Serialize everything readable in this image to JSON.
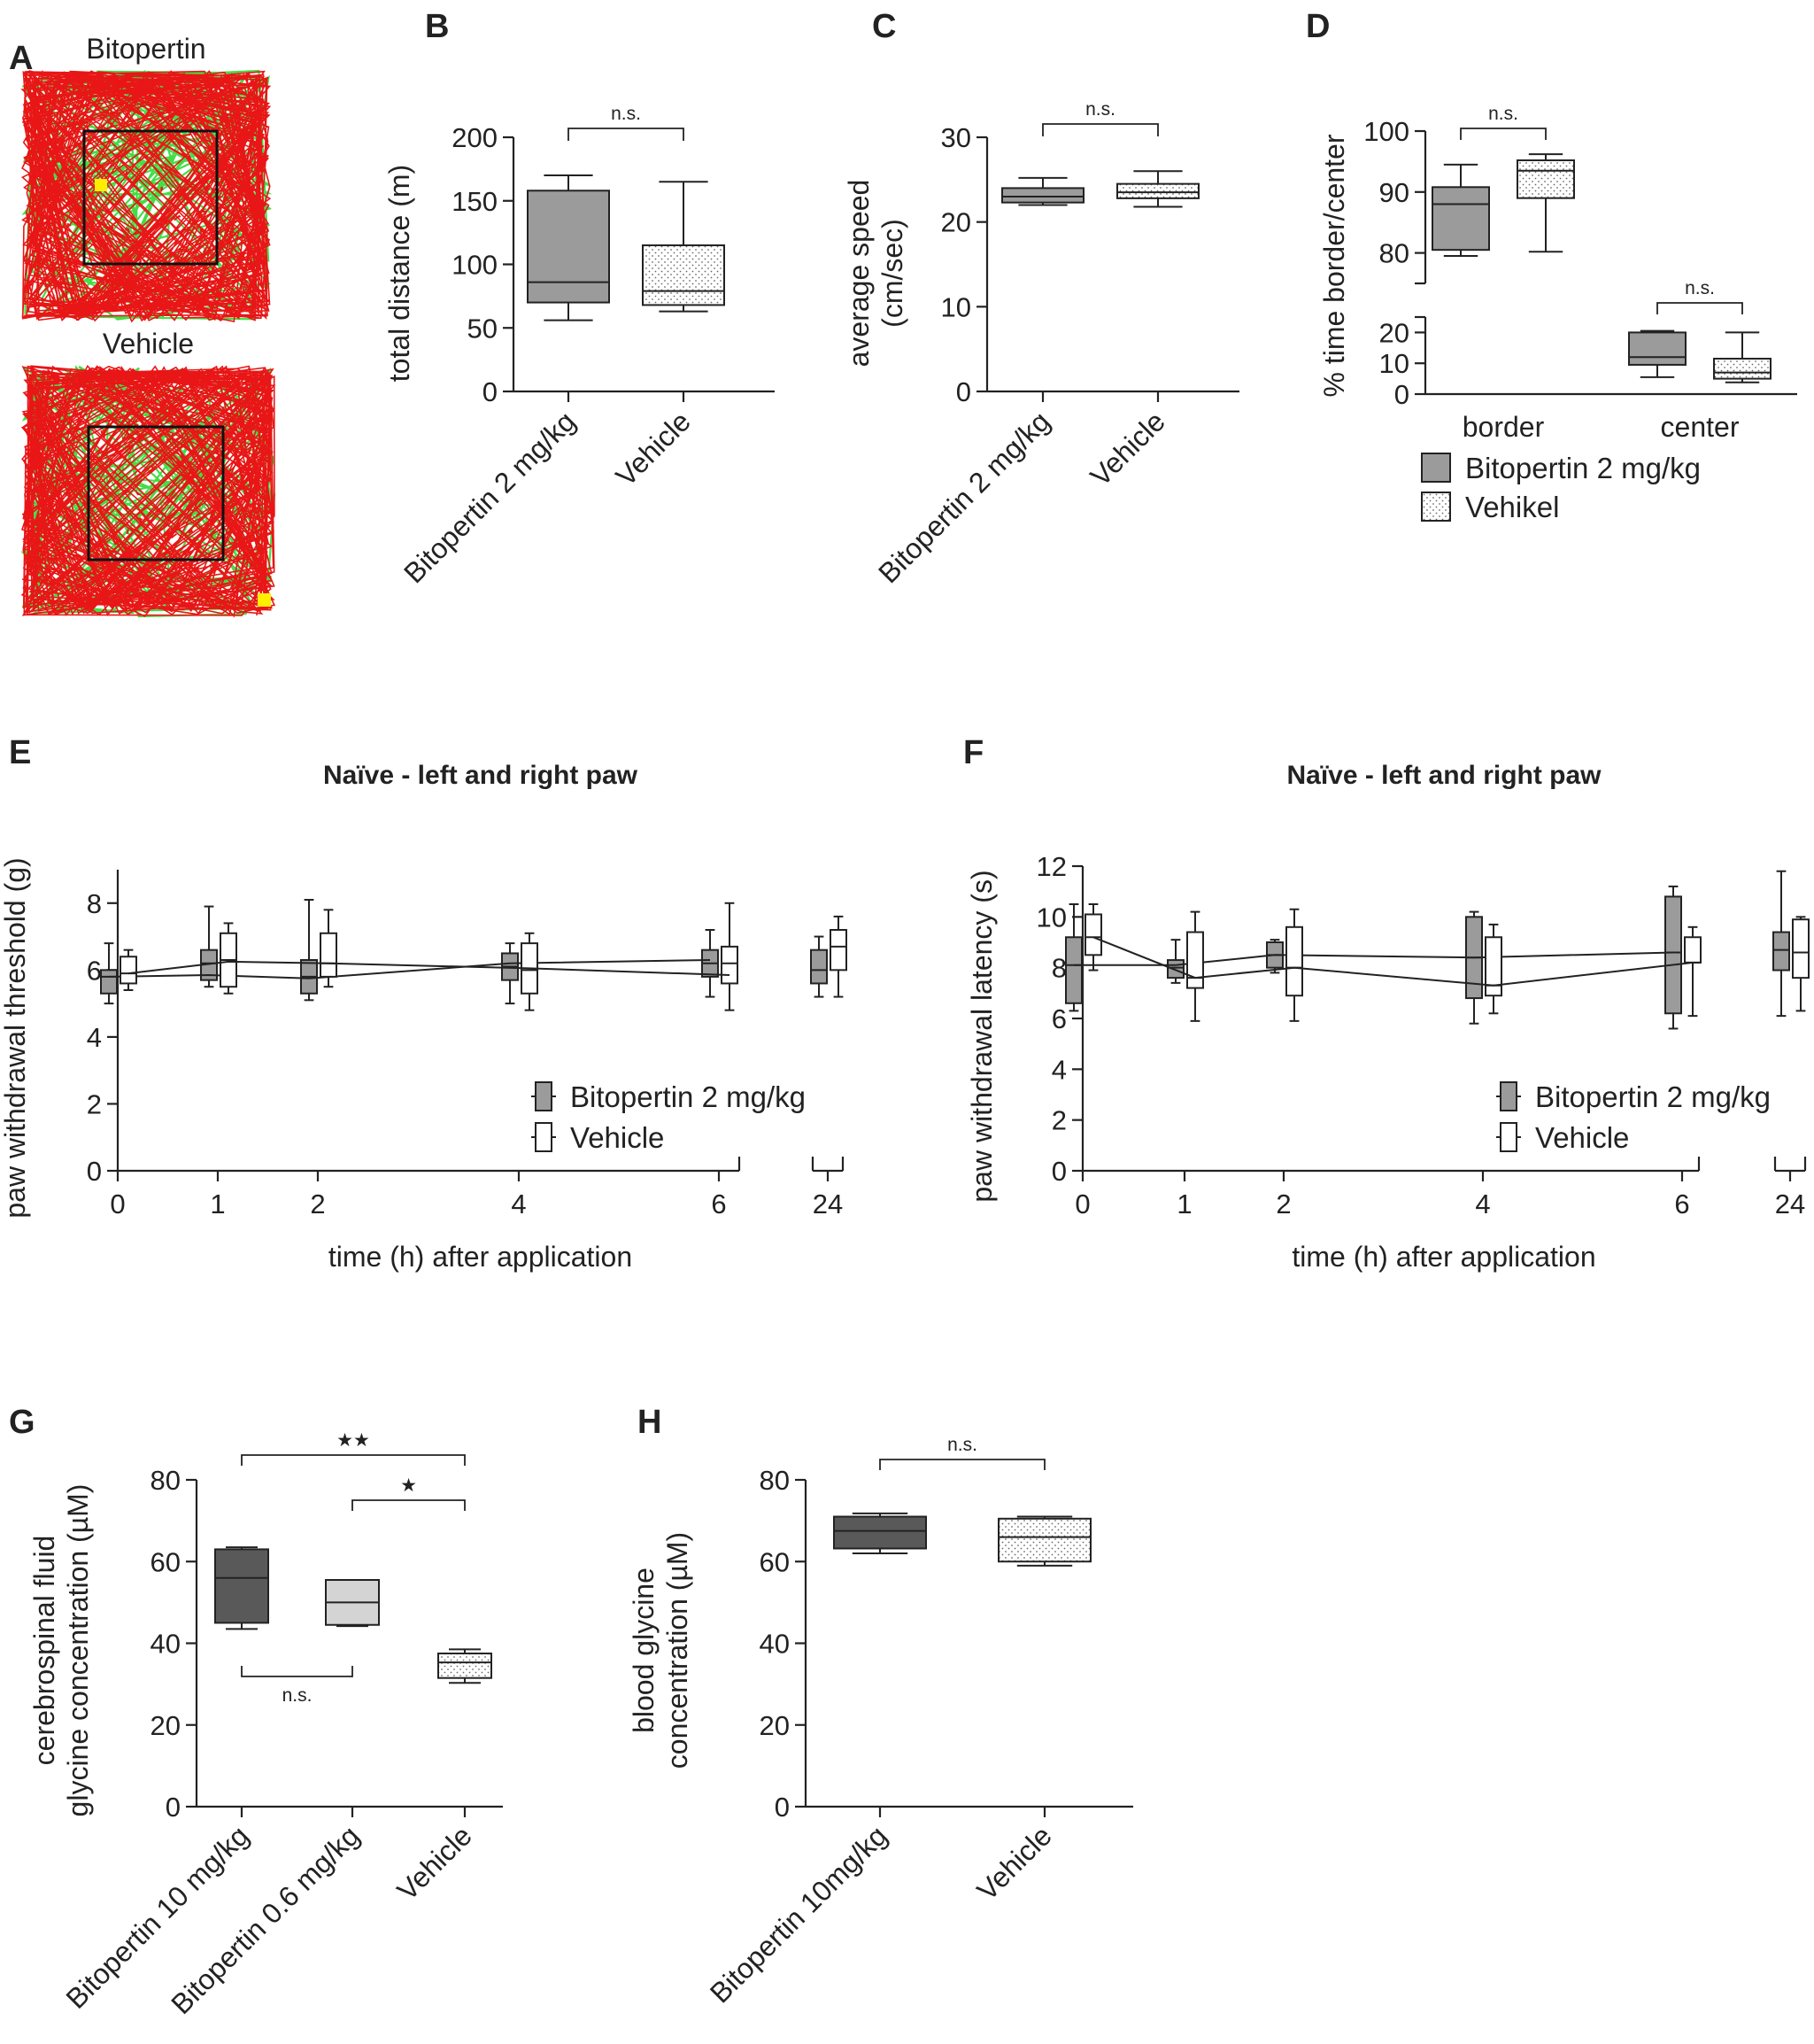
{
  "figure": {
    "background": "#ffffff",
    "ink": "#222222",
    "gray": "#9b9b9b",
    "dark_gray": "#595959",
    "light_gray": "#d4d4d4",
    "track_green": "#44dd44",
    "track_red": "#e81616",
    "marker_yellow": "#ffee00"
  },
  "chart_data": [
    {
      "panel": "A",
      "type": "other",
      "description_titles": [
        "Bitopertin",
        "Vehicle"
      ]
    },
    {
      "panel": "B",
      "type": "box",
      "ylabel": "total distance (m)",
      "ylim": [
        0,
        200
      ],
      "yticks": [
        0,
        50,
        100,
        150,
        200
      ],
      "categories": [
        "Bitopertin 2 mg/kg",
        "Vehicle"
      ],
      "boxes": [
        {
          "name": "Bitopertin 2 mg/kg",
          "min": 56,
          "q1": 70,
          "median": 86,
          "q3": 158,
          "max": 170,
          "fill": "gray"
        },
        {
          "name": "Vehicle",
          "min": 63,
          "q1": 68,
          "median": 79,
          "q3": 115,
          "max": 165,
          "fill": "dotted"
        }
      ],
      "comparisons": [
        {
          "a": 0,
          "b": 1,
          "label": "n.s."
        }
      ]
    },
    {
      "panel": "C",
      "type": "box",
      "ylabel": [
        "average speed",
        "(cm/sec)"
      ],
      "ylim": [
        0,
        30
      ],
      "yticks": [
        0,
        10,
        20,
        30
      ],
      "categories": [
        "Bitopertin 2 mg/kg",
        "Vehicle"
      ],
      "boxes": [
        {
          "name": "Bitopertin 2 mg/kg",
          "min": 22,
          "q1": 22.3,
          "median": 23,
          "q3": 24,
          "max": 25.2,
          "fill": "gray"
        },
        {
          "name": "Vehicle",
          "min": 21.8,
          "q1": 22.8,
          "median": 23.5,
          "q3": 24.5,
          "max": 26,
          "fill": "dotted"
        }
      ],
      "comparisons": [
        {
          "a": 0,
          "b": 1,
          "label": "n.s."
        }
      ]
    },
    {
      "panel": "D",
      "type": "box",
      "ylabel": "% time border/center",
      "upper_ylim": [
        75,
        100
      ],
      "upper_yticks": [
        80,
        90,
        100
      ],
      "lower_ylim": [
        0,
        25
      ],
      "lower_yticks": [
        0,
        10,
        20
      ],
      "categories": [
        "border",
        "center"
      ],
      "series": [
        {
          "name": "Bitopertin 2 mg/kg",
          "fill": "gray"
        },
        {
          "name": "Vehikel",
          "fill": "dotted"
        }
      ],
      "boxes": [
        {
          "group": "border",
          "series": 0,
          "min": 79.5,
          "q1": 80.5,
          "median": 88,
          "q3": 90.8,
          "max": 94.5
        },
        {
          "group": "border",
          "series": 1,
          "min": 80.2,
          "q1": 89,
          "median": 93.5,
          "q3": 95.2,
          "max": 96.2
        },
        {
          "group": "center",
          "series": 0,
          "min": 5.5,
          "q1": 9.5,
          "median": 12,
          "q3": 20,
          "max": 20.5
        },
        {
          "group": "center",
          "series": 1,
          "min": 3.8,
          "q1": 5,
          "median": 7,
          "q3": 11.5,
          "max": 20
        }
      ],
      "comparisons": [
        {
          "group": "border",
          "label": "n.s."
        },
        {
          "group": "center",
          "label": "n.s."
        }
      ],
      "legend": [
        "Bitopertin 2 mg/kg",
        "Vehikel"
      ]
    },
    {
      "panel": "E",
      "type": "box",
      "title": "Naïve - left and right paw",
      "xlabel": "time (h) after application",
      "ylabel": "paw withdrawal threshold (g)",
      "ylim": [
        0,
        9
      ],
      "yticks": [
        0,
        2,
        4,
        6,
        8
      ],
      "x": [
        "0",
        "1",
        "2",
        "4",
        "6",
        "24"
      ],
      "series": [
        {
          "name": "Bitopertin 2 mg/kg",
          "fill": "gray",
          "boxes": [
            {
              "min": 5.0,
              "q1": 5.3,
              "median": 5.8,
              "q3": 6.0,
              "max": 6.8
            },
            {
              "min": 5.5,
              "q1": 5.7,
              "median": 6.2,
              "q3": 6.6,
              "max": 7.9
            },
            {
              "min": 5.1,
              "q1": 5.3,
              "median": 5.8,
              "q3": 6.3,
              "max": 8.1
            },
            {
              "min": 5.0,
              "q1": 5.7,
              "median": 6.1,
              "q3": 6.5,
              "max": 6.8
            },
            {
              "min": 5.2,
              "q1": 5.8,
              "median": 6.2,
              "q3": 6.6,
              "max": 7.2
            },
            {
              "min": 5.2,
              "q1": 5.6,
              "median": 6.0,
              "q3": 6.6,
              "max": 7.0
            }
          ],
          "line": [
            5.8,
            5.85,
            5.75,
            6.2,
            6.3,
            6.4
          ]
        },
        {
          "name": "Vehicle",
          "fill": "white",
          "boxes": [
            {
              "min": 5.4,
              "q1": 5.6,
              "median": 5.9,
              "q3": 6.4,
              "max": 6.6
            },
            {
              "min": 5.3,
              "q1": 5.5,
              "median": 6.3,
              "q3": 7.1,
              "max": 7.4
            },
            {
              "min": 5.5,
              "q1": 5.8,
              "median": 6.2,
              "q3": 7.1,
              "max": 7.8
            },
            {
              "min": 4.8,
              "q1": 5.3,
              "median": 6.0,
              "q3": 6.8,
              "max": 7.1
            },
            {
              "min": 4.8,
              "q1": 5.6,
              "median": 6.2,
              "q3": 6.7,
              "max": 8.0
            },
            {
              "min": 5.2,
              "q1": 6.0,
              "median": 6.7,
              "q3": 7.2,
              "max": 7.6
            }
          ],
          "line": [
            5.9,
            6.25,
            6.2,
            6.05,
            5.85,
            6.7
          ]
        }
      ],
      "legend": [
        "Bitopertin 2 mg/kg",
        "Vehicle"
      ]
    },
    {
      "panel": "F",
      "type": "box",
      "title": "Naïve - left and right paw",
      "xlabel": "time (h) after application",
      "ylabel": "paw withdrawal latency (s)",
      "ylim": [
        0,
        12
      ],
      "yticks": [
        0,
        2,
        4,
        6,
        8,
        10,
        12
      ],
      "x": [
        "0",
        "1",
        "2",
        "4",
        "6",
        "24"
      ],
      "series": [
        {
          "name": "Bitopertin 2 mg/kg",
          "fill": "gray",
          "boxes": [
            {
              "min": 6.3,
              "q1": 6.6,
              "median": 8.1,
              "q3": 9.2,
              "max": 10.5
            },
            {
              "min": 7.4,
              "q1": 7.6,
              "median": 8.0,
              "q3": 8.3,
              "max": 9.1
            },
            {
              "min": 7.8,
              "q1": 8.0,
              "median": 8.5,
              "q3": 9.0,
              "max": 9.1
            },
            {
              "min": 5.8,
              "q1": 6.8,
              "median": 8.4,
              "q3": 10.0,
              "max": 10.2
            },
            {
              "min": 5.6,
              "q1": 6.2,
              "median": 8.6,
              "q3": 10.8,
              "max": 11.2
            },
            {
              "min": 6.1,
              "q1": 7.9,
              "median": 8.7,
              "q3": 9.4,
              "max": 11.8
            }
          ],
          "line": [
            8.1,
            8.1,
            8.5,
            8.4,
            8.6,
            8.7
          ]
        },
        {
          "name": "Vehicle",
          "fill": "white",
          "boxes": [
            {
              "min": 7.9,
              "q1": 8.5,
              "median": 9.2,
              "q3": 10.1,
              "max": 10.5
            },
            {
              "min": 5.9,
              "q1": 7.2,
              "median": 7.6,
              "q3": 9.4,
              "max": 10.2
            },
            {
              "min": 5.9,
              "q1": 6.9,
              "median": 8.0,
              "q3": 9.6,
              "max": 10.3
            },
            {
              "min": 6.2,
              "q1": 6.9,
              "median": 7.3,
              "q3": 9.2,
              "max": 9.7
            },
            {
              "min": 6.1,
              "q1": 8.2,
              "median": 8.2,
              "q3": 9.2,
              "max": 9.6
            },
            {
              "min": 6.3,
              "q1": 7.6,
              "median": 8.6,
              "q3": 9.9,
              "max": 10.0
            }
          ],
          "line": [
            9.2,
            7.6,
            8.0,
            7.3,
            8.2,
            8.6
          ]
        }
      ],
      "legend": [
        "Bitopertin 2 mg/kg",
        "Vehicle"
      ]
    },
    {
      "panel": "G",
      "type": "box",
      "ylabel": [
        "cerebrospinal fluid",
        "glycine concentration (µM)"
      ],
      "ylim": [
        0,
        80
      ],
      "yticks": [
        0,
        20,
        40,
        60,
        80
      ],
      "categories": [
        "Bitopertin 10 mg/kg",
        "Bitopertin 0.6 mg/kg",
        "Vehicle"
      ],
      "boxes": [
        {
          "name": "Bitopertin 10 mg/kg",
          "min": 43.5,
          "q1": 45,
          "median": 56,
          "q3": 63,
          "max": 63.5,
          "fill": "dark"
        },
        {
          "name": "Bitopertin 0.6 mg/kg",
          "min": 44.2,
          "q1": 44.5,
          "median": 50,
          "q3": 55.5,
          "max": 55.5,
          "fill": "light"
        },
        {
          "name": "Vehicle",
          "min": 30.3,
          "q1": 31.5,
          "median": 35.3,
          "q3": 37.5,
          "max": 38.5,
          "fill": "dotted"
        }
      ],
      "comparisons": [
        {
          "a": 0,
          "b": 2,
          "label": "★★",
          "position": "above"
        },
        {
          "a": 1,
          "b": 2,
          "label": "★",
          "position": "above"
        },
        {
          "a": 0,
          "b": 1,
          "label": "n.s.",
          "position": "below"
        }
      ]
    },
    {
      "panel": "H",
      "type": "box",
      "ylabel": [
        "blood glycine",
        "concentration (µM)"
      ],
      "ylim": [
        0,
        80
      ],
      "yticks": [
        0,
        20,
        40,
        60,
        80
      ],
      "categories": [
        "Bitopertin 10mg/kg",
        "Vehicle"
      ],
      "boxes": [
        {
          "name": "Bitopertin 10mg/kg",
          "min": 62,
          "q1": 63.2,
          "median": 67.5,
          "q3": 71,
          "max": 71.8,
          "fill": "dark"
        },
        {
          "name": "Vehicle",
          "min": 59,
          "q1": 60,
          "median": 66,
          "q3": 70.5,
          "max": 71,
          "fill": "dotted"
        }
      ],
      "comparisons": [
        {
          "a": 0,
          "b": 1,
          "label": "n.s."
        }
      ]
    }
  ]
}
